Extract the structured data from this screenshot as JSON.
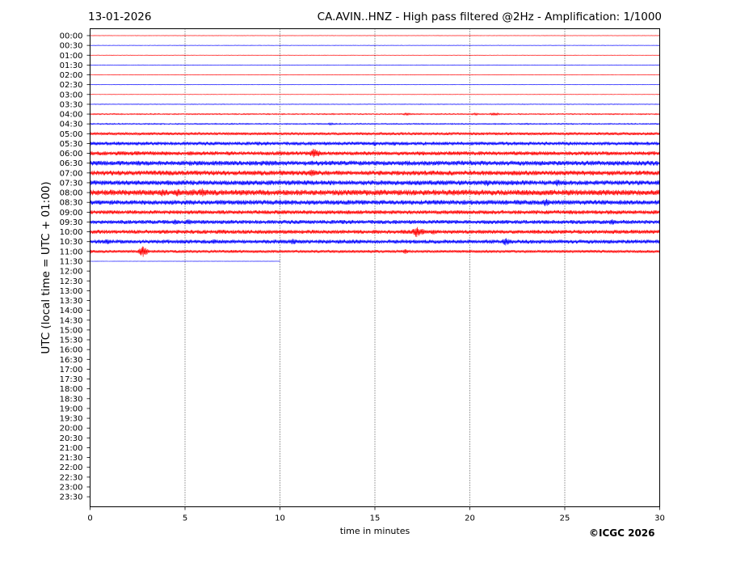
{
  "header": {
    "date": "13-01-2026",
    "title": "CA.AVIN..HNZ - High pass filtered @2Hz - Amplification: 1/1000"
  },
  "footer": {
    "copyright": "©ICGC 2026"
  },
  "chart_data": {
    "type": "line",
    "title": "CA.AVIN..HNZ - High pass filtered @2Hz - Amplification: 1/1000",
    "xlabel": "time in minutes",
    "ylabel": "UTC (local time = UTC + 01:00)",
    "xlim": [
      0,
      30
    ],
    "x_ticks": [
      "0",
      "5",
      "10",
      "15",
      "20",
      "25",
      "30"
    ],
    "x_tick_values": [
      0,
      5,
      10,
      15,
      20,
      25,
      30
    ],
    "vertical_gridlines_at": [
      5,
      10,
      15,
      20,
      25
    ],
    "y_tick_labels": [
      "00:00",
      "00:30",
      "01:00",
      "01:30",
      "02:00",
      "02:30",
      "03:00",
      "03:30",
      "04:00",
      "04:30",
      "05:00",
      "05:30",
      "06:00",
      "06:30",
      "07:00",
      "07:30",
      "08:00",
      "08:30",
      "09:00",
      "09:30",
      "10:00",
      "10:30",
      "11:00",
      "11:30",
      "12:00",
      "12:30",
      "13:00",
      "13:30",
      "14:00",
      "14:30",
      "15:00",
      "15:30",
      "16:00",
      "16:30",
      "17:00",
      "17:30",
      "18:00",
      "18:30",
      "19:00",
      "19:30",
      "20:00",
      "20:30",
      "21:00",
      "21:30",
      "22:00",
      "22:30",
      "23:00",
      "23:30"
    ],
    "trace_colors": [
      "#ff0000",
      "#0000ff"
    ],
    "traces": [
      {
        "start": "00:00",
        "end_minute": 30,
        "activity": 0.05,
        "events": []
      },
      {
        "start": "00:30",
        "end_minute": 30,
        "activity": 0.05,
        "events": []
      },
      {
        "start": "01:00",
        "end_minute": 30,
        "activity": 0.05,
        "events": []
      },
      {
        "start": "01:30",
        "end_minute": 30,
        "activity": 0.05,
        "events": []
      },
      {
        "start": "02:00",
        "end_minute": 30,
        "activity": 0.05,
        "events": []
      },
      {
        "start": "02:30",
        "end_minute": 30,
        "activity": 0.05,
        "events": []
      },
      {
        "start": "03:00",
        "end_minute": 30,
        "activity": 0.05,
        "events": []
      },
      {
        "start": "03:30",
        "end_minute": 30,
        "activity": 0.08,
        "events": []
      },
      {
        "start": "04:00",
        "end_minute": 30,
        "activity": 0.15,
        "events": [
          [
            16.7,
            0.5
          ],
          [
            20.3,
            0.4
          ],
          [
            21.3,
            0.6
          ]
        ]
      },
      {
        "start": "04:30",
        "end_minute": 30,
        "activity": 0.15,
        "events": [
          [
            12.7,
            0.4
          ],
          [
            23.0,
            0.3
          ]
        ]
      },
      {
        "start": "05:00",
        "end_minute": 30,
        "activity": 0.35,
        "events": [
          [
            7.5,
            0.5
          ],
          [
            26.5,
            0.5
          ],
          [
            29.5,
            0.5
          ]
        ]
      },
      {
        "start": "05:30",
        "end_minute": 30,
        "activity": 0.45,
        "events": [
          [
            15.0,
            0.9
          ],
          [
            16.0,
            0.8
          ],
          [
            23.0,
            0.5
          ]
        ]
      },
      {
        "start": "06:00",
        "end_minute": 30,
        "activity": 0.5,
        "events": [
          [
            2.5,
            0.7
          ],
          [
            3.8,
            0.7
          ],
          [
            5.3,
            0.8
          ],
          [
            6.0,
            0.7
          ],
          [
            11.8,
            1.8
          ],
          [
            12.0,
            1.2
          ]
        ]
      },
      {
        "start": "06:30",
        "end_minute": 30,
        "activity": 0.6,
        "events": [
          [
            3.0,
            0.7
          ],
          [
            9.0,
            0.6
          ],
          [
            21.0,
            0.6
          ],
          [
            26.0,
            0.6
          ]
        ]
      },
      {
        "start": "07:00",
        "end_minute": 30,
        "activity": 0.6,
        "events": [
          [
            1.5,
            0.9
          ],
          [
            11.7,
            1.5
          ],
          [
            18.5,
            0.8
          ],
          [
            22.0,
            0.7
          ],
          [
            25.5,
            0.7
          ]
        ]
      },
      {
        "start": "07:30",
        "end_minute": 30,
        "activity": 0.6,
        "events": [
          [
            0.5,
            0.6
          ],
          [
            9.5,
            0.7
          ],
          [
            15.5,
            0.8
          ],
          [
            18.5,
            0.9
          ],
          [
            20.9,
            1.3
          ],
          [
            24.6,
            1.3
          ]
        ]
      },
      {
        "start": "08:00",
        "end_minute": 30,
        "activity": 0.7,
        "events": [
          [
            3.2,
            1.3
          ],
          [
            3.8,
            1.4
          ],
          [
            4.6,
            1.5
          ],
          [
            5.4,
            1.4
          ],
          [
            5.9,
            1.6
          ],
          [
            6.5,
            1.0
          ],
          [
            14.0,
            0.7
          ],
          [
            19.0,
            0.7
          ]
        ]
      },
      {
        "start": "08:30",
        "end_minute": 30,
        "activity": 0.6,
        "events": [
          [
            4.0,
            0.8
          ],
          [
            6.0,
            0.7
          ],
          [
            13.0,
            0.7
          ],
          [
            22.5,
            0.9
          ],
          [
            24.0,
            1.6
          ]
        ]
      },
      {
        "start": "09:00",
        "end_minute": 30,
        "activity": 0.5,
        "events": [
          [
            12.5,
            0.8
          ],
          [
            17.5,
            0.6
          ],
          [
            28.0,
            0.6
          ]
        ]
      },
      {
        "start": "09:30",
        "end_minute": 30,
        "activity": 0.5,
        "events": [
          [
            4.5,
            1.0
          ],
          [
            5.2,
            1.1
          ],
          [
            21.0,
            0.7
          ],
          [
            27.5,
            1.1
          ]
        ]
      },
      {
        "start": "10:00",
        "end_minute": 30,
        "activity": 0.5,
        "events": [
          [
            10.5,
            0.7
          ],
          [
            16.5,
            0.9
          ],
          [
            17.2,
            2.0
          ],
          [
            17.5,
            1.2
          ],
          [
            18.1,
            1.0
          ],
          [
            25.0,
            0.7
          ]
        ]
      },
      {
        "start": "10:30",
        "end_minute": 30,
        "activity": 0.5,
        "events": [
          [
            0.9,
            1.0
          ],
          [
            6.5,
            0.9
          ],
          [
            10.7,
            1.1
          ],
          [
            21.9,
            1.4
          ],
          [
            25.0,
            0.7
          ]
        ]
      },
      {
        "start": "11:00",
        "end_minute": 30,
        "activity": 0.35,
        "events": [
          [
            0.0,
            0.8
          ],
          [
            2.8,
            2.0
          ],
          [
            7.5,
            0.6
          ],
          [
            16.6,
            0.9
          ],
          [
            18.5,
            0.5
          ],
          [
            27.5,
            0.5
          ]
        ]
      },
      {
        "start": "11:30",
        "end_minute": 10,
        "activity": 0.04,
        "events": []
      }
    ]
  }
}
